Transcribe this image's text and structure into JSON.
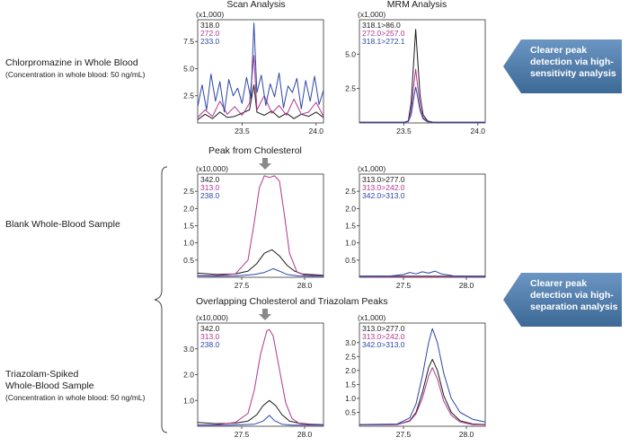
{
  "columns": {
    "scan": "Scan Analysis",
    "mrm": "MRM Analysis"
  },
  "rows": [
    {
      "label": "Chlorpromazine in Whole Blood",
      "sub": "(Concentration in whole blood: 50 ng/mL)"
    },
    {
      "label": "Blank Whole-Blood Sample",
      "sub": ""
    },
    {
      "label": "Triazolam-Spiked\nWhole-Blood Sample",
      "sub": "(Concentration in whole blood: 50 ng/mL)"
    }
  ],
  "section_titles": {
    "cholesterol": "Peak from Cholesterol",
    "overlap": "Overlapping Cholesterol and Triazolam Peaks"
  },
  "callouts": [
    {
      "text": "Clearer peak detection via high-sensitivity analysis"
    },
    {
      "text": "Clearer peak detection via high-separation analysis"
    }
  ],
  "colors": {
    "black": "#1a1a1a",
    "magenta": "#b0358f",
    "blue": "#2a47a8",
    "callout": "#4a78a8",
    "axis": "#333333"
  },
  "chart_data": [
    {
      "id": "p1",
      "type": "line",
      "title": "",
      "xlabel": "",
      "ylabel": "",
      "scale_label": "(x1,000)",
      "xlim": [
        23.2,
        24.05
      ],
      "ylim": [
        0,
        9.5
      ],
      "xticks": [
        {
          "v": 23.5,
          "t": "23.5"
        },
        {
          "v": 24.0,
          "t": "24.0"
        }
      ],
      "yticks": [
        {
          "v": 2.5,
          "t": "2.5"
        },
        {
          "v": 5.0,
          "t": "5.0"
        },
        {
          "v": 7.5,
          "t": "7.5"
        }
      ],
      "legend": [
        "318.0",
        "272.0",
        "233.0"
      ],
      "series": [
        {
          "name": "318.0",
          "color": "black",
          "x": [
            23.2,
            23.25,
            23.3,
            23.35,
            23.4,
            23.45,
            23.5,
            23.55,
            23.58,
            23.6,
            23.65,
            23.7,
            23.75,
            23.8,
            23.85,
            23.9,
            23.95,
            24.0,
            24.05
          ],
          "y": [
            0.3,
            0.8,
            0.4,
            1.0,
            0.5,
            0.6,
            0.9,
            1.2,
            3.5,
            1.0,
            0.7,
            1.1,
            0.5,
            0.9,
            0.4,
            0.8,
            0.6,
            1.0,
            0.5
          ]
        },
        {
          "name": "272.0",
          "color": "magenta",
          "x": [
            23.2,
            23.25,
            23.3,
            23.35,
            23.4,
            23.45,
            23.5,
            23.55,
            23.58,
            23.6,
            23.65,
            23.7,
            23.75,
            23.8,
            23.85,
            23.9,
            23.95,
            24.0,
            24.05
          ],
          "y": [
            0.5,
            1.2,
            0.6,
            2.0,
            0.8,
            1.5,
            0.7,
            1.8,
            6.2,
            1.2,
            2.5,
            0.9,
            1.6,
            0.7,
            2.2,
            0.8,
            1.0,
            1.9,
            0.6
          ]
        },
        {
          "name": "233.0",
          "color": "blue",
          "x": [
            23.2,
            23.23,
            23.26,
            23.29,
            23.32,
            23.35,
            23.38,
            23.41,
            23.44,
            23.47,
            23.5,
            23.53,
            23.56,
            23.58,
            23.6,
            23.63,
            23.66,
            23.69,
            23.72,
            23.75,
            23.78,
            23.81,
            23.84,
            23.87,
            23.9,
            23.93,
            23.96,
            23.99,
            24.02,
            24.05
          ],
          "y": [
            1.5,
            3.5,
            1.2,
            4.5,
            2.0,
            3.8,
            1.0,
            4.0,
            2.5,
            3.2,
            1.8,
            4.2,
            2.2,
            9.2,
            2.8,
            4.4,
            1.6,
            3.6,
            2.4,
            4.6,
            1.4,
            3.4,
            2.8,
            4.1,
            1.3,
            3.9,
            2.0,
            4.3,
            1.7,
            3.0
          ]
        }
      ]
    },
    {
      "id": "p2",
      "type": "line",
      "title": "",
      "xlabel": "",
      "ylabel": "",
      "scale_label": "(x1,000)",
      "xlim": [
        23.2,
        24.05
      ],
      "ylim": [
        0,
        7.5
      ],
      "xticks": [
        {
          "v": 23.5,
          "t": "23.5"
        },
        {
          "v": 24.0,
          "t": "24.0"
        }
      ],
      "yticks": [
        {
          "v": 2.5,
          "t": "2.5"
        },
        {
          "v": 5.0,
          "t": "5.0"
        }
      ],
      "legend": [
        "318.1>86.0",
        "272.0>257.0",
        "318.1>272.1"
      ],
      "series": [
        {
          "name": "318.1>86.0",
          "color": "black",
          "x": [
            23.2,
            23.5,
            23.53,
            23.55,
            23.57,
            23.58,
            23.59,
            23.61,
            23.63,
            23.66,
            23.7,
            24.05
          ],
          "y": [
            0.05,
            0.05,
            0.15,
            1.5,
            5.0,
            6.8,
            5.2,
            2.0,
            0.6,
            0.15,
            0.05,
            0.05
          ]
        },
        {
          "name": "272.0>257.0",
          "color": "magenta",
          "x": [
            23.2,
            23.5,
            23.53,
            23.55,
            23.57,
            23.58,
            23.59,
            23.61,
            23.63,
            23.66,
            23.7,
            24.05
          ],
          "y": [
            0.05,
            0.05,
            0.12,
            0.9,
            3.0,
            3.9,
            3.0,
            1.2,
            0.4,
            0.1,
            0.05,
            0.05
          ]
        },
        {
          "name": "318.1>272.1",
          "color": "blue",
          "x": [
            23.2,
            23.5,
            23.53,
            23.55,
            23.57,
            23.58,
            23.59,
            23.61,
            23.63,
            23.66,
            23.7,
            24.05
          ],
          "y": [
            0.05,
            0.05,
            0.1,
            0.6,
            2.0,
            2.6,
            2.1,
            0.9,
            0.3,
            0.08,
            0.05,
            0.05
          ]
        }
      ]
    },
    {
      "id": "p3",
      "type": "line",
      "title": "",
      "xlabel": "",
      "ylabel": "",
      "scale_label": "(x10,000)",
      "xlim": [
        27.15,
        28.15
      ],
      "ylim": [
        0,
        3.0
      ],
      "xticks": [
        {
          "v": 27.5,
          "t": "27.5"
        },
        {
          "v": 28.0,
          "t": "28.0"
        }
      ],
      "yticks": [
        {
          "v": 0.5,
          "t": "0.5"
        },
        {
          "v": 1.0,
          "t": "1.0"
        },
        {
          "v": 1.5,
          "t": "1.5"
        },
        {
          "v": 2.0,
          "t": "2.0"
        },
        {
          "v": 2.5,
          "t": "2.5"
        }
      ],
      "legend": [
        "342.0",
        "313.0",
        "238.0"
      ],
      "series": [
        {
          "name": "342.0",
          "color": "black",
          "x": [
            27.15,
            27.3,
            27.45,
            27.55,
            27.62,
            27.68,
            27.74,
            27.8,
            27.86,
            27.92,
            27.98,
            28.05,
            28.15
          ],
          "y": [
            0.12,
            0.08,
            0.1,
            0.18,
            0.4,
            0.7,
            0.8,
            0.62,
            0.35,
            0.18,
            0.1,
            0.08,
            0.06
          ]
        },
        {
          "name": "313.0",
          "color": "magenta",
          "x": [
            27.15,
            27.3,
            27.45,
            27.55,
            27.6,
            27.64,
            27.68,
            27.72,
            27.76,
            27.8,
            27.84,
            27.88,
            27.94,
            28.0,
            28.08,
            28.15
          ],
          "y": [
            0.05,
            0.05,
            0.1,
            0.5,
            1.6,
            2.6,
            2.95,
            2.9,
            2.95,
            2.8,
            1.8,
            0.7,
            0.15,
            0.06,
            0.05,
            0.05
          ]
        },
        {
          "name": "238.0",
          "color": "blue",
          "x": [
            27.15,
            27.3,
            27.45,
            27.6,
            27.68,
            27.75,
            27.8,
            27.86,
            27.95,
            28.05,
            28.15
          ],
          "y": [
            0.04,
            0.03,
            0.04,
            0.08,
            0.14,
            0.25,
            0.18,
            0.08,
            0.04,
            0.03,
            0.03
          ]
        }
      ]
    },
    {
      "id": "p4",
      "type": "line",
      "title": "",
      "xlabel": "",
      "ylabel": "",
      "scale_label": "(x1,000)",
      "xlim": [
        27.15,
        28.15
      ],
      "ylim": [
        0,
        3.0
      ],
      "xticks": [
        {
          "v": 27.5,
          "t": "27.5"
        },
        {
          "v": 28.0,
          "t": "28.0"
        }
      ],
      "yticks": [
        {
          "v": 0.5,
          "t": "0.5"
        },
        {
          "v": 1.0,
          "t": "1.0"
        },
        {
          "v": 1.5,
          "t": "1.5"
        },
        {
          "v": 2.0,
          "t": "2.0"
        },
        {
          "v": 2.5,
          "t": "2.5"
        }
      ],
      "legend": [
        "313.0>277.0",
        "313.0>242.0",
        "342.0>313.0"
      ],
      "series": [
        {
          "name": "313.0>277.0",
          "color": "black",
          "x": [
            27.15,
            28.15
          ],
          "y": [
            0.03,
            0.03
          ]
        },
        {
          "name": "313.0>242.0",
          "color": "magenta",
          "x": [
            27.15,
            28.15
          ],
          "y": [
            0.02,
            0.02
          ]
        },
        {
          "name": "342.0>313.0",
          "color": "blue",
          "x": [
            27.15,
            27.4,
            27.5,
            27.55,
            27.6,
            27.65,
            27.7,
            27.75,
            27.8,
            27.85,
            27.9,
            28.0,
            28.15
          ],
          "y": [
            0.03,
            0.04,
            0.08,
            0.14,
            0.1,
            0.16,
            0.12,
            0.18,
            0.1,
            0.07,
            0.04,
            0.03,
            0.03
          ]
        }
      ]
    },
    {
      "id": "p5",
      "type": "line",
      "title": "",
      "xlabel": "",
      "ylabel": "",
      "scale_label": "(x10,000)",
      "xlim": [
        27.15,
        28.15
      ],
      "ylim": [
        0,
        4.0
      ],
      "xticks": [
        {
          "v": 27.5,
          "t": "27.5"
        },
        {
          "v": 28.0,
          "t": "28.0"
        }
      ],
      "yticks": [
        {
          "v": 1.0,
          "t": "1.0"
        },
        {
          "v": 2.0,
          "t": "2.0"
        },
        {
          "v": 3.0,
          "t": "3.0"
        }
      ],
      "legend": [
        "342.0",
        "313.0",
        "238.0"
      ],
      "series": [
        {
          "name": "342.0",
          "color": "black",
          "x": [
            27.15,
            27.3,
            27.45,
            27.55,
            27.62,
            27.67,
            27.72,
            27.77,
            27.82,
            27.88,
            27.95,
            28.05,
            28.15
          ],
          "y": [
            0.15,
            0.1,
            0.12,
            0.2,
            0.45,
            0.8,
            1.0,
            0.8,
            0.45,
            0.2,
            0.12,
            0.08,
            0.06
          ]
        },
        {
          "name": "313.0",
          "color": "magenta",
          "x": [
            27.15,
            27.3,
            27.45,
            27.55,
            27.6,
            27.65,
            27.7,
            27.72,
            27.75,
            27.8,
            27.85,
            27.9,
            27.96,
            28.05,
            28.15
          ],
          "y": [
            0.05,
            0.06,
            0.15,
            0.5,
            1.4,
            2.8,
            3.7,
            3.75,
            3.5,
            2.2,
            0.9,
            0.3,
            0.1,
            0.06,
            0.05
          ]
        },
        {
          "name": "238.0",
          "color": "blue",
          "x": [
            27.15,
            27.4,
            27.6,
            27.67,
            27.72,
            27.76,
            27.82,
            27.9,
            28.15
          ],
          "y": [
            0.04,
            0.04,
            0.08,
            0.2,
            0.42,
            0.22,
            0.08,
            0.04,
            0.04
          ]
        }
      ]
    },
    {
      "id": "p6",
      "type": "line",
      "title": "",
      "xlabel": "",
      "ylabel": "",
      "scale_label": "(x1,000)",
      "xlim": [
        27.15,
        28.15
      ],
      "ylim": [
        0,
        3.7
      ],
      "xticks": [
        {
          "v": 27.5,
          "t": "27.5"
        },
        {
          "v": 28.0,
          "t": "28.0"
        }
      ],
      "yticks": [
        {
          "v": 0.5,
          "t": "0.5"
        },
        {
          "v": 1.0,
          "t": "1.0"
        },
        {
          "v": 1.5,
          "t": "1.5"
        },
        {
          "v": 2.0,
          "t": "2.0"
        },
        {
          "v": 2.5,
          "t": "2.5"
        },
        {
          "v": 3.0,
          "t": "3.0"
        }
      ],
      "legend": [
        "313.0>277.0",
        "313.0>242.0",
        "342.0>313.0"
      ],
      "series": [
        {
          "name": "313.0>277.0",
          "color": "black",
          "x": [
            27.15,
            27.45,
            27.55,
            27.6,
            27.65,
            27.7,
            27.73,
            27.77,
            27.82,
            27.88,
            27.95,
            28.05,
            28.15
          ],
          "y": [
            0.05,
            0.06,
            0.2,
            0.5,
            1.2,
            2.1,
            2.4,
            2.0,
            1.1,
            0.5,
            0.2,
            0.08,
            0.06
          ]
        },
        {
          "name": "313.0>242.0",
          "color": "magenta",
          "x": [
            27.15,
            27.45,
            27.55,
            27.6,
            27.65,
            27.7,
            27.73,
            27.77,
            27.82,
            27.88,
            27.95,
            28.05,
            28.15
          ],
          "y": [
            0.05,
            0.06,
            0.18,
            0.45,
            1.0,
            1.8,
            2.1,
            1.7,
            0.9,
            0.4,
            0.15,
            0.06,
            0.05
          ]
        },
        {
          "name": "342.0>313.0",
          "color": "blue",
          "x": [
            27.15,
            27.45,
            27.55,
            27.6,
            27.65,
            27.7,
            27.73,
            27.77,
            27.82,
            27.88,
            27.95,
            28.05,
            28.15
          ],
          "y": [
            0.06,
            0.08,
            0.3,
            0.8,
            1.8,
            3.0,
            3.5,
            3.0,
            1.9,
            1.0,
            0.5,
            0.25,
            0.15
          ]
        }
      ]
    }
  ]
}
